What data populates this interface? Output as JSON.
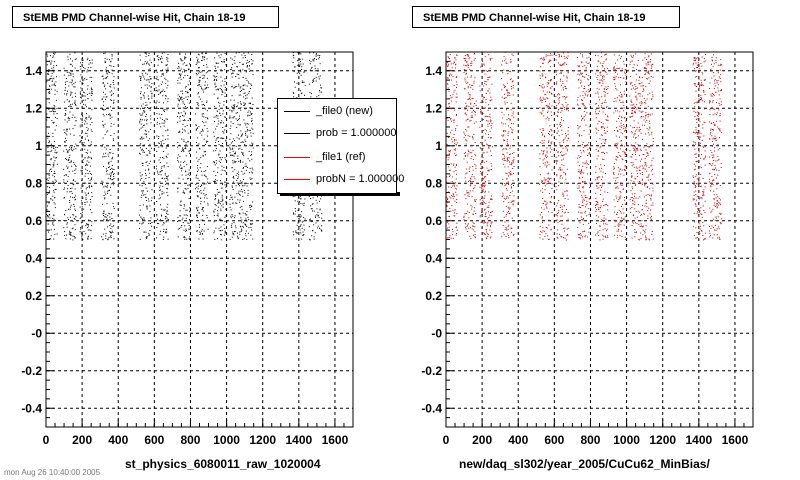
{
  "chart_data": [
    {
      "type": "scatter",
      "title": "StEMB PMD Channel-wise Hit, Chain 18-19",
      "xlabel": "st_physics_6080011_raw_1020004",
      "ylabel": "",
      "xlim": [
        0,
        1700
      ],
      "ylim": [
        -0.5,
        1.5
      ],
      "x_ticks": [
        "0",
        "200",
        "400",
        "600",
        "800",
        "1000",
        "1200",
        "1400",
        "1600"
      ],
      "y_ticks": [
        "-0.4",
        "-0.2",
        "-0",
        "0.2",
        "0.4",
        "0.6",
        "0.8",
        "1",
        "1.2",
        "1.4"
      ],
      "grid": true,
      "marker_color": "#000000",
      "point_y_range": [
        0.5,
        1.5
      ],
      "clusters_x": [
        [
          0,
          60
        ],
        [
          95,
          165
        ],
        [
          185,
          255
        ],
        [
          305,
          375
        ],
        [
          515,
          585
        ],
        [
          605,
          675
        ],
        [
          725,
          795
        ],
        [
          825,
          895
        ],
        [
          925,
          995
        ],
        [
          1015,
          1085
        ],
        [
          1085,
          1145
        ],
        [
          1365,
          1435
        ],
        [
          1455,
          1525
        ]
      ],
      "legend": {
        "position": "top-right",
        "entries": [
          {
            "label": "_file0 (new)",
            "color": "#000000"
          },
          {
            "label": "prob = 1.000000",
            "color": "#000000"
          },
          {
            "label": "_file1 (ref)",
            "color": "#ff0000"
          },
          {
            "label": "probN = 1.000000",
            "color": "#ff0000"
          }
        ]
      }
    },
    {
      "type": "scatter",
      "title": "StEMB PMD Channel-wise Hit, Chain 18-19",
      "xlabel": "new/daq_sl302/year_2005/CuCu62_MinBias/",
      "ylabel": "",
      "xlim": [
        0,
        1700
      ],
      "ylim": [
        -0.5,
        1.5
      ],
      "x_ticks": [
        "0",
        "200",
        "400",
        "600",
        "800",
        "1000",
        "1200",
        "1400",
        "1600"
      ],
      "y_ticks": [
        "-0.4",
        "-0.2",
        "-0",
        "0.2",
        "0.4",
        "0.6",
        "0.8",
        "1",
        "1.2",
        "1.4"
      ],
      "grid": true,
      "marker_color": "#cc0000",
      "point_y_range": [
        0.5,
        1.5
      ],
      "clusters_x": [
        [
          0,
          60
        ],
        [
          95,
          165
        ],
        [
          185,
          255
        ],
        [
          305,
          375
        ],
        [
          515,
          585
        ],
        [
          605,
          675
        ],
        [
          725,
          795
        ],
        [
          825,
          895
        ],
        [
          925,
          995
        ],
        [
          1015,
          1085
        ],
        [
          1085,
          1145
        ],
        [
          1365,
          1435
        ],
        [
          1455,
          1525
        ]
      ]
    }
  ],
  "footer": "mon Aug 26 10:40:00 2005"
}
